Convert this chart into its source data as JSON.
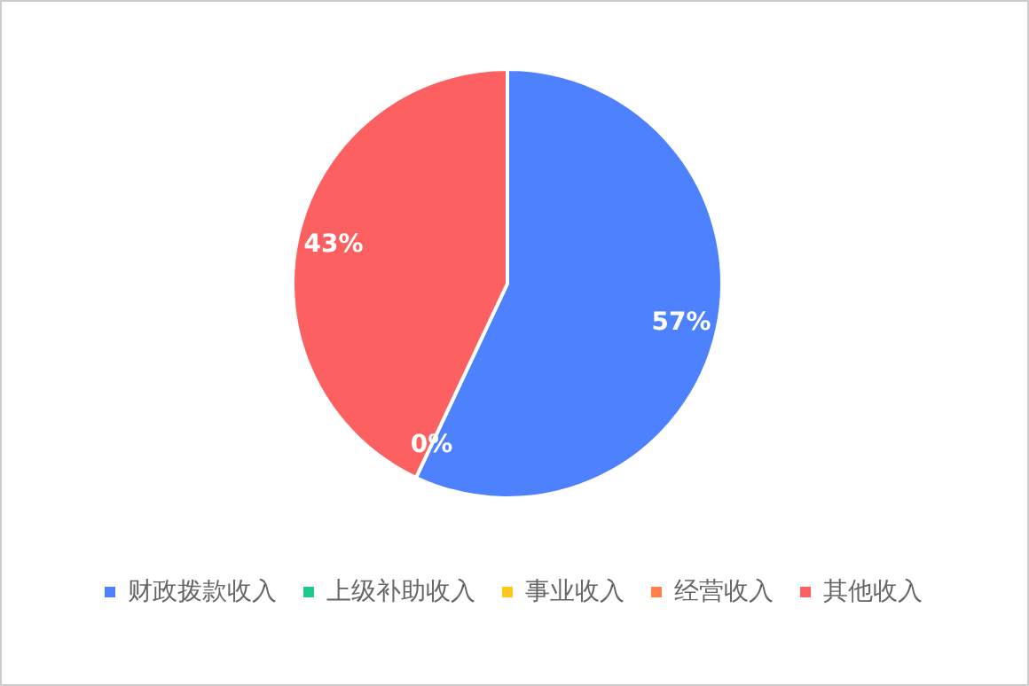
{
  "chart_data": {
    "type": "pie",
    "categories": [
      "财政拨款收入",
      "上级补助收入",
      "事业收入",
      "经营收入",
      "其他收入"
    ],
    "values": [
      57,
      0,
      0,
      0,
      43
    ],
    "colors": [
      "#4e81fd",
      "#1dca8a",
      "#fdc61b",
      "#fe7f47",
      "#fc6060"
    ],
    "value_labels": [
      "57%",
      "0%",
      null,
      null,
      "43%"
    ],
    "legend": "bottom"
  }
}
